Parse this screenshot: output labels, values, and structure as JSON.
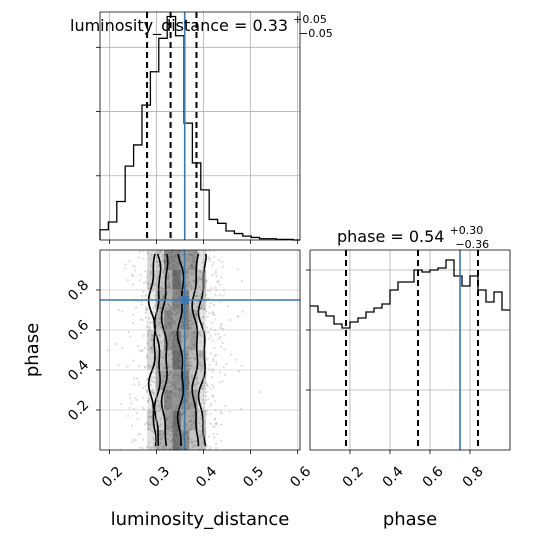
{
  "chart_data": [
    {
      "type": "histogram",
      "panel": "top-left",
      "variable": "luminosity_distance",
      "title": {
        "main": "luminosity_distance = 0.33",
        "sup": "+0.05",
        "sub": "−0.05"
      },
      "xlim": [
        0.18,
        0.605
      ],
      "grid": true,
      "bins": [
        0.18,
        0.1978,
        0.2157,
        0.2335,
        0.2514,
        0.2692,
        0.2871,
        0.3049,
        0.3228,
        0.3406,
        0.3585,
        0.3763,
        0.3942,
        0.412,
        0.4299,
        0.4477,
        0.4656,
        0.4834,
        0.5013,
        0.5191,
        0.537,
        0.5548,
        0.5727,
        0.5905,
        0.605
      ],
      "counts": [
        0.16,
        0.28,
        0.6,
        1.15,
        1.48,
        2.1,
        2.62,
        3.14,
        3.48,
        3.18,
        1.82,
        1.2,
        0.78,
        0.32,
        0.26,
        0.14,
        0.1,
        0.06,
        0.04,
        0.02,
        0.02,
        0.01,
        0.01,
        0.0
      ],
      "quantile_lines": [
        0.28,
        0.33,
        0.385
      ],
      "truth": 0.36
    },
    {
      "type": "scatter-density",
      "panel": "bottom-left",
      "xlabel": "luminosity_distance",
      "ylabel": "phase",
      "xlim": [
        0.18,
        0.605
      ],
      "ylim": [
        0.0,
        1.0
      ],
      "xticks": [
        "0.2",
        "0.3",
        "0.4",
        "0.5",
        "0.6"
      ],
      "xtick_values": [
        0.2,
        0.3,
        0.4,
        0.5,
        0.6
      ],
      "yticks": [
        "0.2",
        "0.4",
        "0.6",
        "0.8"
      ],
      "ytick_values": [
        0.2,
        0.4,
        0.6,
        0.8
      ],
      "truth": {
        "x": 0.36,
        "y": 0.75
      },
      "grid": true
    },
    {
      "type": "histogram",
      "panel": "bottom-right",
      "variable": "phase",
      "title": {
        "main": "phase = 0.54",
        "sup": "+0.30",
        "sub": "−0.36"
      },
      "xlabel": "phase",
      "xlim": [
        0.0,
        1.0
      ],
      "xticks": [
        "0.2",
        "0.4",
        "0.6",
        "0.8"
      ],
      "xtick_values": [
        0.2,
        0.4,
        0.6,
        0.8
      ],
      "grid": true,
      "bins": [
        0.0,
        0.04,
        0.08,
        0.12,
        0.16,
        0.2,
        0.24,
        0.28,
        0.32,
        0.36,
        0.4,
        0.44,
        0.48,
        0.52,
        0.56,
        0.6,
        0.64,
        0.68,
        0.72,
        0.76,
        0.8,
        0.84,
        0.88,
        0.92,
        0.96,
        1.0
      ],
      "counts": [
        0.72,
        0.69,
        0.67,
        0.63,
        0.61,
        0.64,
        0.66,
        0.69,
        0.71,
        0.73,
        0.8,
        0.84,
        0.84,
        0.9,
        0.89,
        0.9,
        0.91,
        0.95,
        0.87,
        0.82,
        0.87,
        0.8,
        0.74,
        0.79,
        0.7
      ],
      "quantile_lines": [
        0.18,
        0.54,
        0.84
      ],
      "truth": 0.75
    }
  ],
  "colors": {
    "truth": "#3b78b0",
    "hist": "#000000",
    "grid": "#b0b0b0"
  }
}
